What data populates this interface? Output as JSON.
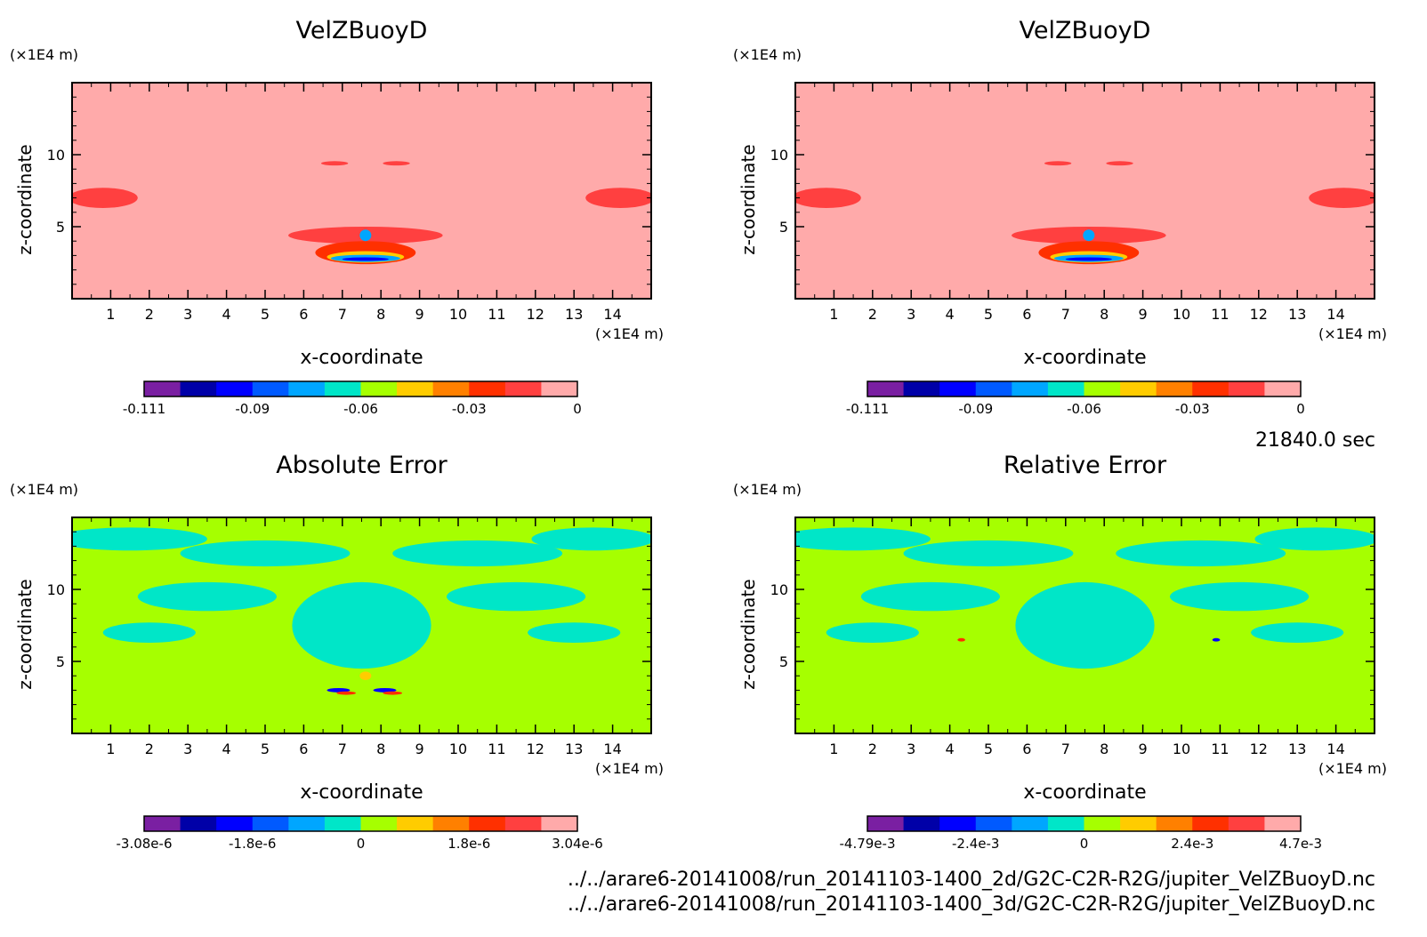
{
  "time_label": "21840.0 sec",
  "files": [
    "../../arare6-20141008/run_20141103-1400_2d/G2C-C2R-R2G/jupiter_VelZBuoyD.nc",
    "../../arare6-20141008/run_20141103-1400_3d/G2C-C2R-R2G/jupiter_VelZBuoyD.nc"
  ],
  "chart_data": [
    {
      "type": "heatmap",
      "title": "VelZBuoyD",
      "xlabel": "x-coordinate",
      "ylabel": "z-coordinate",
      "x_unit": "(×1E4 m)",
      "y_unit": "(×1E4 m)",
      "xlim": [
        0,
        15
      ],
      "ylim": [
        0,
        15
      ],
      "x_ticks": [
        "1",
        "2",
        "3",
        "4",
        "5",
        "6",
        "7",
        "8",
        "9",
        "10",
        "11",
        "12",
        "13",
        "14"
      ],
      "y_ticks": [
        "5",
        "10"
      ],
      "colorbar": {
        "colors": [
          "#7a1fa2",
          "#0000a8",
          "#0000ff",
          "#005aff",
          "#00a6ff",
          "#00e6c8",
          "#a6ff00",
          "#ffcc00",
          "#ff8000",
          "#ff3000",
          "#ff4040",
          "#ffaaaa"
        ],
        "labels": [
          "-0.111",
          "-0.09",
          "-0.06",
          "-0.03",
          "0"
        ]
      },
      "features": [
        {
          "kind": "background",
          "color": "#ffaaaa"
        },
        {
          "kind": "blob",
          "x": 0.8,
          "z": 7.0,
          "rx": 0.9,
          "rz": 0.7,
          "color": "#ff4040"
        },
        {
          "kind": "blob",
          "x": 14.2,
          "z": 7.0,
          "rx": 0.9,
          "rz": 0.7,
          "color": "#ff4040"
        },
        {
          "kind": "blob",
          "x": 6.8,
          "z": 9.4,
          "rx": 0.35,
          "rz": 0.15,
          "color": "#ff4040"
        },
        {
          "kind": "blob",
          "x": 8.4,
          "z": 9.4,
          "rx": 0.35,
          "rz": 0.15,
          "color": "#ff4040"
        },
        {
          "kind": "blob",
          "x": 7.6,
          "z": 4.4,
          "rx": 2.0,
          "rz": 0.6,
          "color": "#ff4040"
        },
        {
          "kind": "blob",
          "x": 7.6,
          "z": 3.2,
          "rx": 1.3,
          "rz": 0.8,
          "color": "#ff3000"
        },
        {
          "kind": "blob",
          "x": 7.6,
          "z": 2.9,
          "rx": 1.0,
          "rz": 0.4,
          "color": "#ffcc00"
        },
        {
          "kind": "blob",
          "x": 7.6,
          "z": 2.8,
          "rx": 0.9,
          "rz": 0.25,
          "color": "#00a6ff"
        },
        {
          "kind": "blob",
          "x": 7.6,
          "z": 2.75,
          "rx": 0.6,
          "rz": 0.12,
          "color": "#0000ff"
        },
        {
          "kind": "blob",
          "x": 7.6,
          "z": 4.4,
          "rx": 0.15,
          "rz": 0.4,
          "color": "#00a6ff"
        }
      ]
    },
    {
      "type": "heatmap",
      "title": "VelZBuoyD",
      "xlabel": "x-coordinate",
      "ylabel": "z-coordinate",
      "x_unit": "(×1E4 m)",
      "y_unit": "(×1E4 m)",
      "xlim": [
        0,
        15
      ],
      "ylim": [
        0,
        15
      ],
      "x_ticks": [
        "1",
        "2",
        "3",
        "4",
        "5",
        "6",
        "7",
        "8",
        "9",
        "10",
        "11",
        "12",
        "13",
        "14"
      ],
      "y_ticks": [
        "5",
        "10"
      ],
      "colorbar": {
        "colors": [
          "#7a1fa2",
          "#0000a8",
          "#0000ff",
          "#005aff",
          "#00a6ff",
          "#00e6c8",
          "#a6ff00",
          "#ffcc00",
          "#ff8000",
          "#ff3000",
          "#ff4040",
          "#ffaaaa"
        ],
        "labels": [
          "-0.111",
          "-0.09",
          "-0.06",
          "-0.03",
          "0"
        ]
      },
      "features": [
        {
          "kind": "background",
          "color": "#ffaaaa"
        },
        {
          "kind": "blob",
          "x": 0.8,
          "z": 7.0,
          "rx": 0.9,
          "rz": 0.7,
          "color": "#ff4040"
        },
        {
          "kind": "blob",
          "x": 14.2,
          "z": 7.0,
          "rx": 0.9,
          "rz": 0.7,
          "color": "#ff4040"
        },
        {
          "kind": "blob",
          "x": 6.8,
          "z": 9.4,
          "rx": 0.35,
          "rz": 0.15,
          "color": "#ff4040"
        },
        {
          "kind": "blob",
          "x": 8.4,
          "z": 9.4,
          "rx": 0.35,
          "rz": 0.15,
          "color": "#ff4040"
        },
        {
          "kind": "blob",
          "x": 7.6,
          "z": 4.4,
          "rx": 2.0,
          "rz": 0.6,
          "color": "#ff4040"
        },
        {
          "kind": "blob",
          "x": 7.6,
          "z": 3.2,
          "rx": 1.3,
          "rz": 0.8,
          "color": "#ff3000"
        },
        {
          "kind": "blob",
          "x": 7.6,
          "z": 2.9,
          "rx": 1.0,
          "rz": 0.4,
          "color": "#ffcc00"
        },
        {
          "kind": "blob",
          "x": 7.6,
          "z": 2.8,
          "rx": 0.9,
          "rz": 0.25,
          "color": "#00a6ff"
        },
        {
          "kind": "blob",
          "x": 7.6,
          "z": 2.75,
          "rx": 0.6,
          "rz": 0.12,
          "color": "#0000ff"
        },
        {
          "kind": "blob",
          "x": 7.6,
          "z": 4.4,
          "rx": 0.15,
          "rz": 0.4,
          "color": "#00a6ff"
        }
      ]
    },
    {
      "type": "heatmap",
      "title": "Absolute Error",
      "xlabel": "x-coordinate",
      "ylabel": "z-coordinate",
      "x_unit": "(×1E4 m)",
      "y_unit": "(×1E4 m)",
      "xlim": [
        0,
        15
      ],
      "ylim": [
        0,
        15
      ],
      "x_ticks": [
        "1",
        "2",
        "3",
        "4",
        "5",
        "6",
        "7",
        "8",
        "9",
        "10",
        "11",
        "12",
        "13",
        "14"
      ],
      "y_ticks": [
        "5",
        "10"
      ],
      "colorbar": {
        "colors": [
          "#7a1fa2",
          "#0000a8",
          "#0000ff",
          "#005aff",
          "#00a6ff",
          "#00e6c8",
          "#a6ff00",
          "#ffcc00",
          "#ff8000",
          "#ff3000",
          "#ff4040",
          "#ffaaaa"
        ],
        "labels": [
          "-3.08e-6",
          "-1.8e-6",
          "0",
          "1.8e-6",
          "3.04e-6"
        ]
      },
      "features": [
        {
          "kind": "background",
          "color": "#a6ff00"
        },
        {
          "kind": "blob",
          "x": 1.5,
          "z": 13.5,
          "rx": 2.0,
          "rz": 0.8,
          "color": "#00e6c8"
        },
        {
          "kind": "blob",
          "x": 5.0,
          "z": 12.5,
          "rx": 2.2,
          "rz": 0.9,
          "color": "#00e6c8"
        },
        {
          "kind": "blob",
          "x": 10.5,
          "z": 12.5,
          "rx": 2.2,
          "rz": 0.9,
          "color": "#00e6c8"
        },
        {
          "kind": "blob",
          "x": 13.5,
          "z": 13.5,
          "rx": 1.6,
          "rz": 0.8,
          "color": "#00e6c8"
        },
        {
          "kind": "blob",
          "x": 3.5,
          "z": 9.5,
          "rx": 1.8,
          "rz": 1.0,
          "color": "#00e6c8"
        },
        {
          "kind": "blob",
          "x": 11.5,
          "z": 9.5,
          "rx": 1.8,
          "rz": 1.0,
          "color": "#00e6c8"
        },
        {
          "kind": "blob",
          "x": 7.5,
          "z": 7.5,
          "rx": 1.8,
          "rz": 3.0,
          "color": "#00e6c8"
        },
        {
          "kind": "blob",
          "x": 2.0,
          "z": 7.0,
          "rx": 1.2,
          "rz": 0.7,
          "color": "#00e6c8"
        },
        {
          "kind": "blob",
          "x": 13.0,
          "z": 7.0,
          "rx": 1.2,
          "rz": 0.7,
          "color": "#00e6c8"
        },
        {
          "kind": "blob",
          "x": 6.9,
          "z": 3.0,
          "rx": 0.3,
          "rz": 0.15,
          "color": "#0000ff"
        },
        {
          "kind": "blob",
          "x": 7.1,
          "z": 2.8,
          "rx": 0.25,
          "rz": 0.12,
          "color": "#ff3000"
        },
        {
          "kind": "blob",
          "x": 8.1,
          "z": 3.0,
          "rx": 0.3,
          "rz": 0.15,
          "color": "#0000ff"
        },
        {
          "kind": "blob",
          "x": 8.3,
          "z": 2.8,
          "rx": 0.25,
          "rz": 0.12,
          "color": "#ff3000"
        },
        {
          "kind": "blob",
          "x": 7.6,
          "z": 4.0,
          "rx": 0.15,
          "rz": 0.3,
          "color": "#ffcc00"
        }
      ]
    },
    {
      "type": "heatmap",
      "title": "Relative Error",
      "xlabel": "x-coordinate",
      "ylabel": "z-coordinate",
      "x_unit": "(×1E4 m)",
      "y_unit": "(×1E4 m)",
      "xlim": [
        0,
        15
      ],
      "ylim": [
        0,
        15
      ],
      "x_ticks": [
        "1",
        "2",
        "3",
        "4",
        "5",
        "6",
        "7",
        "8",
        "9",
        "10",
        "11",
        "12",
        "13",
        "14"
      ],
      "y_ticks": [
        "5",
        "10"
      ],
      "colorbar": {
        "colors": [
          "#7a1fa2",
          "#0000a8",
          "#0000ff",
          "#005aff",
          "#00a6ff",
          "#00e6c8",
          "#a6ff00",
          "#ffcc00",
          "#ff8000",
          "#ff3000",
          "#ff4040",
          "#ffaaaa"
        ],
        "labels": [
          "-4.79e-3",
          "-2.4e-3",
          "0",
          "2.4e-3",
          "4.7e-3"
        ]
      },
      "features": [
        {
          "kind": "background",
          "color": "#a6ff00"
        },
        {
          "kind": "blob",
          "x": 1.5,
          "z": 13.5,
          "rx": 2.0,
          "rz": 0.8,
          "color": "#00e6c8"
        },
        {
          "kind": "blob",
          "x": 5.0,
          "z": 12.5,
          "rx": 2.2,
          "rz": 0.9,
          "color": "#00e6c8"
        },
        {
          "kind": "blob",
          "x": 10.5,
          "z": 12.5,
          "rx": 2.2,
          "rz": 0.9,
          "color": "#00e6c8"
        },
        {
          "kind": "blob",
          "x": 13.5,
          "z": 13.5,
          "rx": 1.6,
          "rz": 0.8,
          "color": "#00e6c8"
        },
        {
          "kind": "blob",
          "x": 3.5,
          "z": 9.5,
          "rx": 1.8,
          "rz": 1.0,
          "color": "#00e6c8"
        },
        {
          "kind": "blob",
          "x": 11.5,
          "z": 9.5,
          "rx": 1.8,
          "rz": 1.0,
          "color": "#00e6c8"
        },
        {
          "kind": "blob",
          "x": 7.5,
          "z": 7.5,
          "rx": 1.8,
          "rz": 3.0,
          "color": "#00e6c8"
        },
        {
          "kind": "blob",
          "x": 2.0,
          "z": 7.0,
          "rx": 1.2,
          "rz": 0.7,
          "color": "#00e6c8"
        },
        {
          "kind": "blob",
          "x": 13.0,
          "z": 7.0,
          "rx": 1.2,
          "rz": 0.7,
          "color": "#00e6c8"
        },
        {
          "kind": "blob",
          "x": 4.3,
          "z": 6.5,
          "rx": 0.1,
          "rz": 0.12,
          "color": "#ff3000"
        },
        {
          "kind": "blob",
          "x": 10.9,
          "z": 6.5,
          "rx": 0.1,
          "rz": 0.12,
          "color": "#0000ff"
        }
      ]
    }
  ]
}
